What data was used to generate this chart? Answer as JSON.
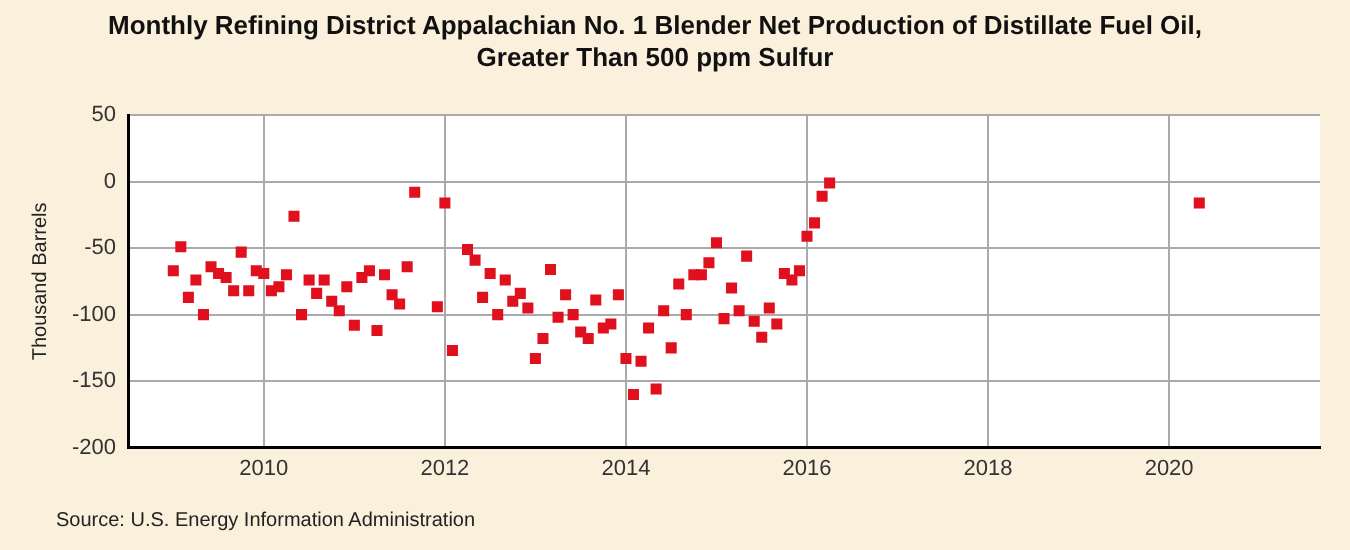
{
  "chart_data": {
    "type": "scatter",
    "title": "Monthly Refining District Appalachian No. 1 Blender Net Production of Distillate Fuel Oil, Greater Than 500 ppm Sulfur",
    "ylabel": "Thousand Barrels",
    "annotations": [
      "Source: U.S. Energy Information Administration"
    ],
    "x": [
      "2009-01",
      "2009-02",
      "2009-03",
      "2009-04",
      "2009-05",
      "2009-06",
      "2009-07",
      "2009-08",
      "2009-09",
      "2009-10",
      "2009-11",
      "2009-12",
      "2010-01",
      "2010-02",
      "2010-03",
      "2010-04",
      "2010-05",
      "2010-06",
      "2010-07",
      "2010-08",
      "2010-09",
      "2010-10",
      "2010-11",
      "2010-12",
      "2011-01",
      "2011-02",
      "2011-03",
      "2011-04",
      "2011-05",
      "2011-06",
      "2011-07",
      "2011-08",
      "2011-09",
      "2011-12",
      "2012-01",
      "2012-02",
      "2012-04",
      "2012-05",
      "2012-06",
      "2012-07",
      "2012-08",
      "2012-09",
      "2012-10",
      "2012-11",
      "2012-12",
      "2013-01",
      "2013-02",
      "2013-03",
      "2013-04",
      "2013-05",
      "2013-06",
      "2013-07",
      "2013-08",
      "2013-09",
      "2013-10",
      "2013-11",
      "2013-12",
      "2014-01",
      "2014-02",
      "2014-03",
      "2014-04",
      "2014-05",
      "2014-06",
      "2014-07",
      "2014-08",
      "2014-09",
      "2014-10",
      "2014-11",
      "2014-12",
      "2015-01",
      "2015-02",
      "2015-03",
      "2015-04",
      "2015-05",
      "2015-06",
      "2015-07",
      "2015-08",
      "2015-09",
      "2015-10",
      "2015-11",
      "2015-12",
      "2016-01",
      "2016-02",
      "2016-03",
      "2016-04",
      "2020-05"
    ],
    "series": [
      {
        "color": "#e0101e",
        "values": [
          -67,
          -49,
          -87,
          -74,
          -100,
          -64,
          -69,
          -72,
          -82,
          -53,
          -82,
          -67,
          -69,
          -82,
          -79,
          -70,
          -26,
          -100,
          -74,
          -84,
          -74,
          -90,
          -97,
          -79,
          -108,
          -72,
          -67,
          -112,
          -70,
          -85,
          -92,
          -64,
          -8,
          -94,
          -16,
          -127,
          -51,
          -59,
          -87,
          -69,
          -100,
          -74,
          -90,
          -84,
          -95,
          -133,
          -118,
          -66,
          -102,
          -85,
          -100,
          -113,
          -118,
          -89,
          -110,
          -107,
          -85,
          -133,
          -160,
          -135,
          -110,
          -156,
          -97,
          -125,
          -77,
          -100,
          -70,
          -70,
          -61,
          -46,
          -103,
          -80,
          -97,
          -56,
          -105,
          -117,
          -95,
          -107,
          -69,
          -74,
          -67,
          -41,
          -31,
          -11,
          -1,
          -16
        ]
      }
    ],
    "xlim": [
      "2008-07",
      "2021-09"
    ],
    "xticks": [
      "2010",
      "2012",
      "2014",
      "2016",
      "2018",
      "2020"
    ],
    "ylim": [
      -200,
      50
    ],
    "yticks": [
      -200,
      -150,
      -100,
      -50,
      0,
      50
    ],
    "grid": true,
    "legend": false,
    "marker": "square"
  }
}
